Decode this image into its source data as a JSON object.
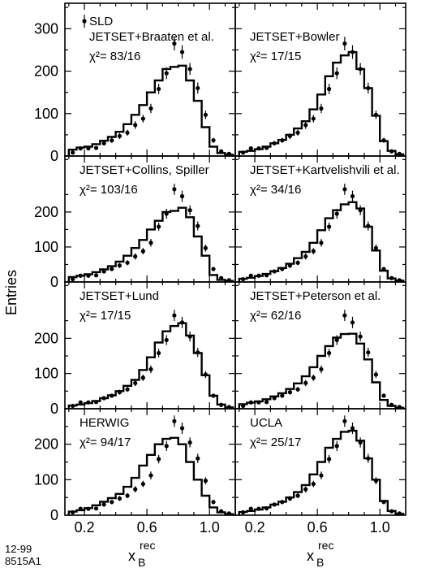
{
  "figure": {
    "ylabel": "Entries",
    "xlabel_main": "x",
    "xlabel_sub": "B",
    "xlabel_sup": "rec",
    "code_line1": "12-99",
    "code_line2": "8515A1",
    "data_legend": "SLD"
  },
  "chart_data": {
    "type": "histogram-grid",
    "x_bin_edges": [
      0.1,
      0.15,
      0.2,
      0.25,
      0.3,
      0.35,
      0.4,
      0.45,
      0.5,
      0.55,
      0.6,
      0.65,
      0.7,
      0.75,
      0.8,
      0.85,
      0.9,
      0.95,
      1.0,
      1.05,
      1.1,
      1.15
    ],
    "xlim": [
      0.075,
      1.165
    ],
    "x_ticks": [
      0.2,
      0.6,
      1.0
    ],
    "x_tick_labels": [
      "0.2",
      "0.6",
      "1.0"
    ],
    "y_ticks_top": [
      0,
      100,
      200,
      300
    ],
    "y_ticks_lower": [
      0,
      100,
      200
    ],
    "data_x": [
      0.125,
      0.175,
      0.225,
      0.275,
      0.325,
      0.375,
      0.425,
      0.475,
      0.525,
      0.575,
      0.625,
      0.675,
      0.725,
      0.775,
      0.825,
      0.875,
      0.925,
      0.975,
      1.025,
      1.075,
      1.125
    ],
    "data_y": [
      8,
      18,
      18,
      19,
      30,
      37,
      47,
      55,
      73,
      88,
      112,
      158,
      195,
      265,
      245,
      205,
      160,
      97,
      37,
      11,
      5
    ],
    "data_err": [
      3,
      4,
      4,
      4,
      5,
      6,
      7,
      7,
      9,
      9,
      11,
      12,
      14,
      16,
      16,
      14,
      13,
      10,
      6,
      3,
      2
    ],
    "panels": [
      {
        "label": "JETSET+Braaten et al.",
        "chi2": "χ²= 83/16",
        "ylim": [
          0,
          360
        ],
        "model": [
          15,
          20,
          22,
          28,
          36,
          45,
          57,
          75,
          97,
          120,
          150,
          178,
          205,
          210,
          213,
          178,
          130,
          68,
          22,
          7,
          3
        ]
      },
      {
        "label": "JETSET+Bowler",
        "chi2": "χ²= 17/15",
        "ylim": [
          0,
          360
        ],
        "model": [
          10,
          12,
          16,
          22,
          30,
          38,
          50,
          65,
          82,
          110,
          145,
          188,
          220,
          237,
          245,
          205,
          160,
          95,
          35,
          12,
          4
        ]
      },
      {
        "label": "JETSET+Collins, Spiller",
        "chi2": "χ²= 103/16",
        "ylim": [
          0,
          360
        ],
        "model": [
          14,
          18,
          22,
          28,
          36,
          45,
          58,
          75,
          97,
          120,
          150,
          175,
          200,
          203,
          212,
          185,
          130,
          75,
          20,
          6,
          3
        ]
      },
      {
        "label": "JETSET+Kartvelishvili et al.",
        "chi2": "χ²= 34/16",
        "ylim": [
          0,
          360
        ],
        "model": [
          9,
          12,
          17,
          23,
          31,
          40,
          52,
          68,
          86,
          112,
          148,
          182,
          205,
          222,
          228,
          210,
          158,
          90,
          32,
          10,
          4
        ]
      },
      {
        "label": "JETSET+Lund",
        "chi2": "χ²= 17/15",
        "ylim": [
          0,
          360
        ],
        "model": [
          9,
          12,
          16,
          22,
          30,
          38,
          50,
          65,
          82,
          110,
          146,
          188,
          220,
          235,
          243,
          208,
          158,
          95,
          37,
          12,
          4
        ]
      },
      {
        "label": "JETSET+Peterson et al.",
        "chi2": "χ²= 62/16",
        "ylim": [
          0,
          360
        ],
        "model": [
          13,
          17,
          21,
          27,
          35,
          44,
          56,
          72,
          92,
          118,
          150,
          178,
          202,
          212,
          213,
          185,
          140,
          75,
          25,
          8,
          3
        ]
      },
      {
        "label": "HERWIG",
        "chi2": "χ²= 94/17",
        "ylim": [
          0,
          300
        ],
        "model": [
          10,
          14,
          20,
          28,
          38,
          48,
          60,
          80,
          105,
          140,
          170,
          200,
          215,
          218,
          200,
          150,
          100,
          55,
          22,
          8,
          3
        ]
      },
      {
        "label": "UCLA",
        "chi2": "χ²= 25/17",
        "ylim": [
          0,
          300
        ],
        "model": [
          9,
          12,
          16,
          22,
          30,
          38,
          50,
          65,
          85,
          115,
          150,
          190,
          215,
          235,
          238,
          210,
          160,
          100,
          40,
          12,
          4
        ]
      }
    ]
  }
}
